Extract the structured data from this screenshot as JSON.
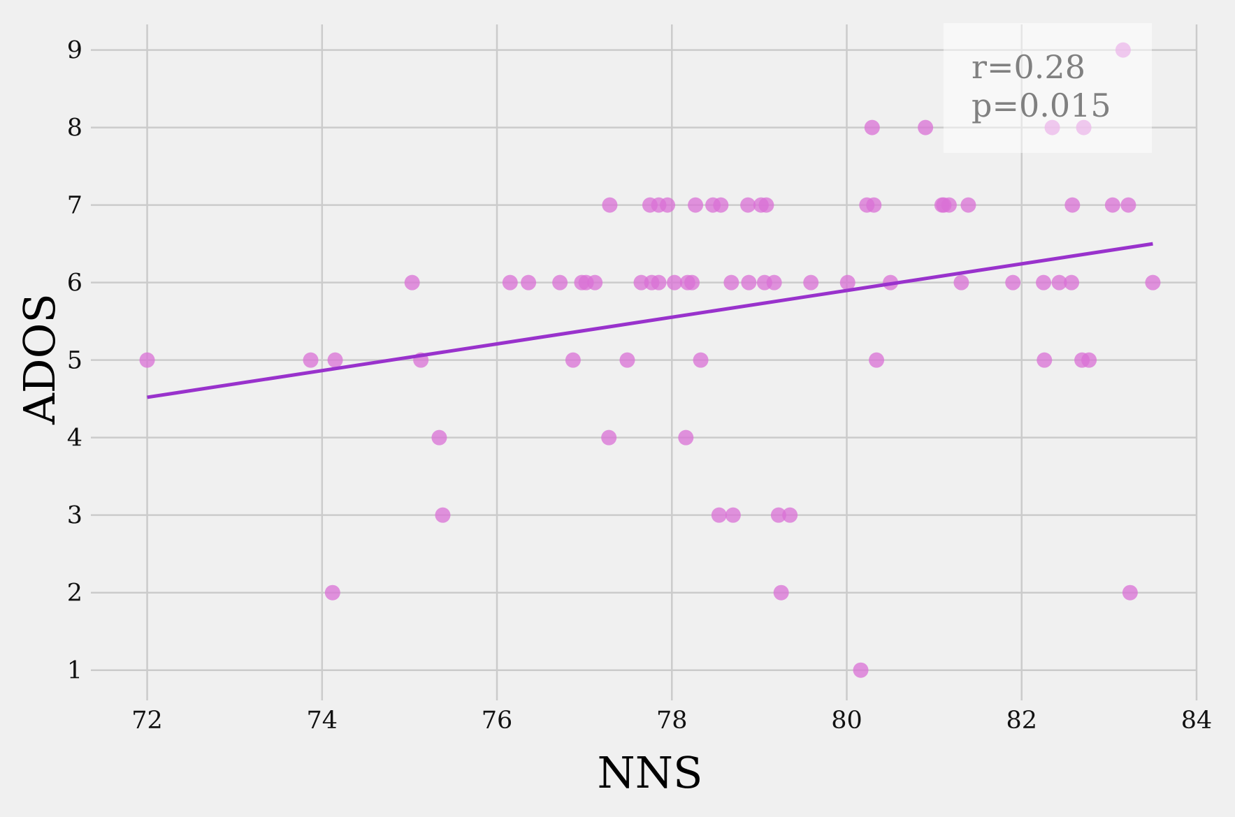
{
  "chart_data": {
    "type": "scatter",
    "xlabel": "NNS",
    "ylabel": "ADOS",
    "xlim": [
      71.5,
      84
    ],
    "ylim": [
      0.7,
      9.33
    ],
    "xticks": [
      72,
      74,
      76,
      78,
      80,
      82,
      84
    ],
    "yticks": [
      1,
      2,
      3,
      4,
      5,
      6,
      7,
      8,
      9
    ],
    "grid": true,
    "colors": {
      "points": "#da70d6",
      "fit_line": "#9932cc",
      "background": "#f0f0f0",
      "grid": "#cbcbcb"
    },
    "annotation": {
      "lines": [
        "r=0.28",
        "p=0.015"
      ],
      "placement": "top-right"
    },
    "fit_line": {
      "x": [
        72.0,
        83.5
      ],
      "y": [
        4.52,
        6.5
      ]
    },
    "points": {
      "x": [
        72.0,
        73.87,
        74.15,
        74.12,
        75.03,
        75.13,
        75.34,
        75.38,
        76.15,
        76.36,
        76.72,
        76.87,
        76.97,
        77.02,
        77.12,
        77.29,
        77.28,
        77.49,
        77.65,
        77.75,
        77.77,
        77.85,
        77.85,
        77.95,
        78.03,
        78.18,
        78.23,
        78.16,
        78.27,
        78.33,
        78.47,
        78.54,
        78.56,
        78.68,
        78.7,
        78.87,
        78.88,
        79.02,
        79.06,
        79.08,
        79.17,
        79.22,
        79.25,
        79.35,
        79.59,
        80.01,
        80.16,
        80.23,
        80.29,
        80.31,
        80.34,
        80.5,
        80.9,
        81.09,
        81.11,
        81.17,
        81.31,
        81.39,
        81.9,
        82.25,
        82.26,
        82.35,
        82.43,
        82.57,
        82.58,
        82.69,
        82.71,
        82.77,
        83.04,
        83.16,
        83.22,
        83.24,
        83.5
      ],
      "y": [
        5,
        5,
        5,
        2,
        6,
        5,
        4,
        3,
        6,
        6,
        6,
        5,
        6,
        6,
        6,
        7,
        4,
        5,
        6,
        7,
        6,
        7,
        6,
        7,
        6,
        6,
        6,
        4,
        7,
        5,
        7,
        3,
        7,
        6,
        3,
        7,
        6,
        7,
        6,
        7,
        6,
        3,
        2,
        3,
        6,
        6,
        1,
        7,
        8,
        7,
        5,
        6,
        8,
        7,
        7,
        7,
        6,
        7,
        6,
        6,
        5,
        8,
        6,
        6,
        7,
        5,
        8,
        5,
        7,
        9,
        7,
        2,
        6
      ]
    }
  }
}
